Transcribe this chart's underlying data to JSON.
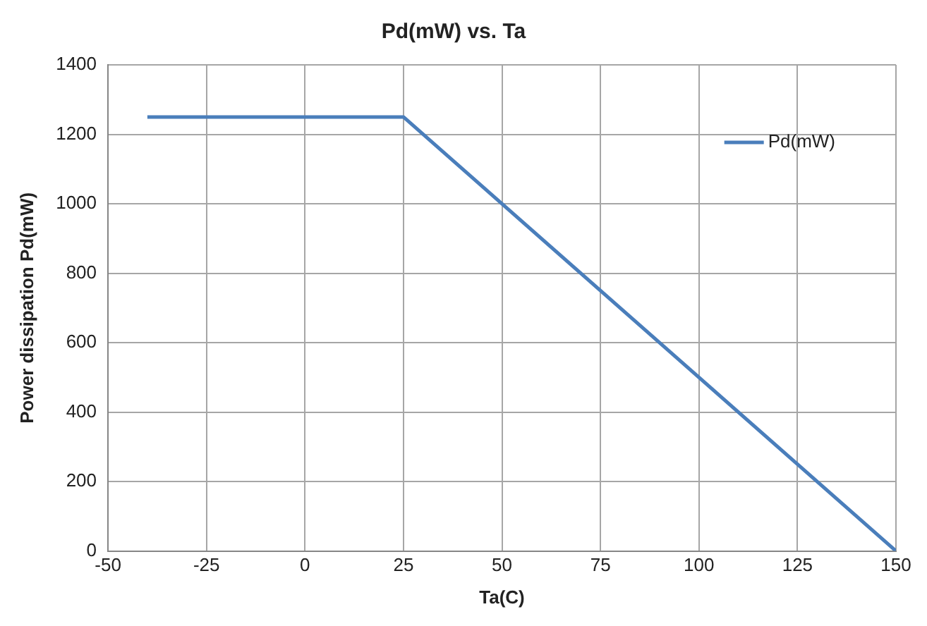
{
  "chart_data": {
    "type": "line",
    "title": "Pd(mW) vs. Ta",
    "xlabel": "Ta(C)",
    "ylabel": "Power dissipation Pd(mW)",
    "x": [
      -40,
      25,
      150
    ],
    "series": [
      {
        "name": "Pd(mW)",
        "color": "#4a7ebb",
        "values": [
          1250,
          1250,
          0
        ]
      }
    ],
    "xlim": [
      -50,
      150
    ],
    "xticks": [
      -50,
      -25,
      0,
      25,
      50,
      75,
      100,
      125,
      150
    ],
    "ylim": [
      0,
      1400
    ],
    "yticks": [
      0,
      200,
      400,
      600,
      800,
      1000,
      1200,
      1400
    ],
    "grid": true,
    "legend": "top right",
    "marker": "none",
    "line_style": "solid"
  }
}
